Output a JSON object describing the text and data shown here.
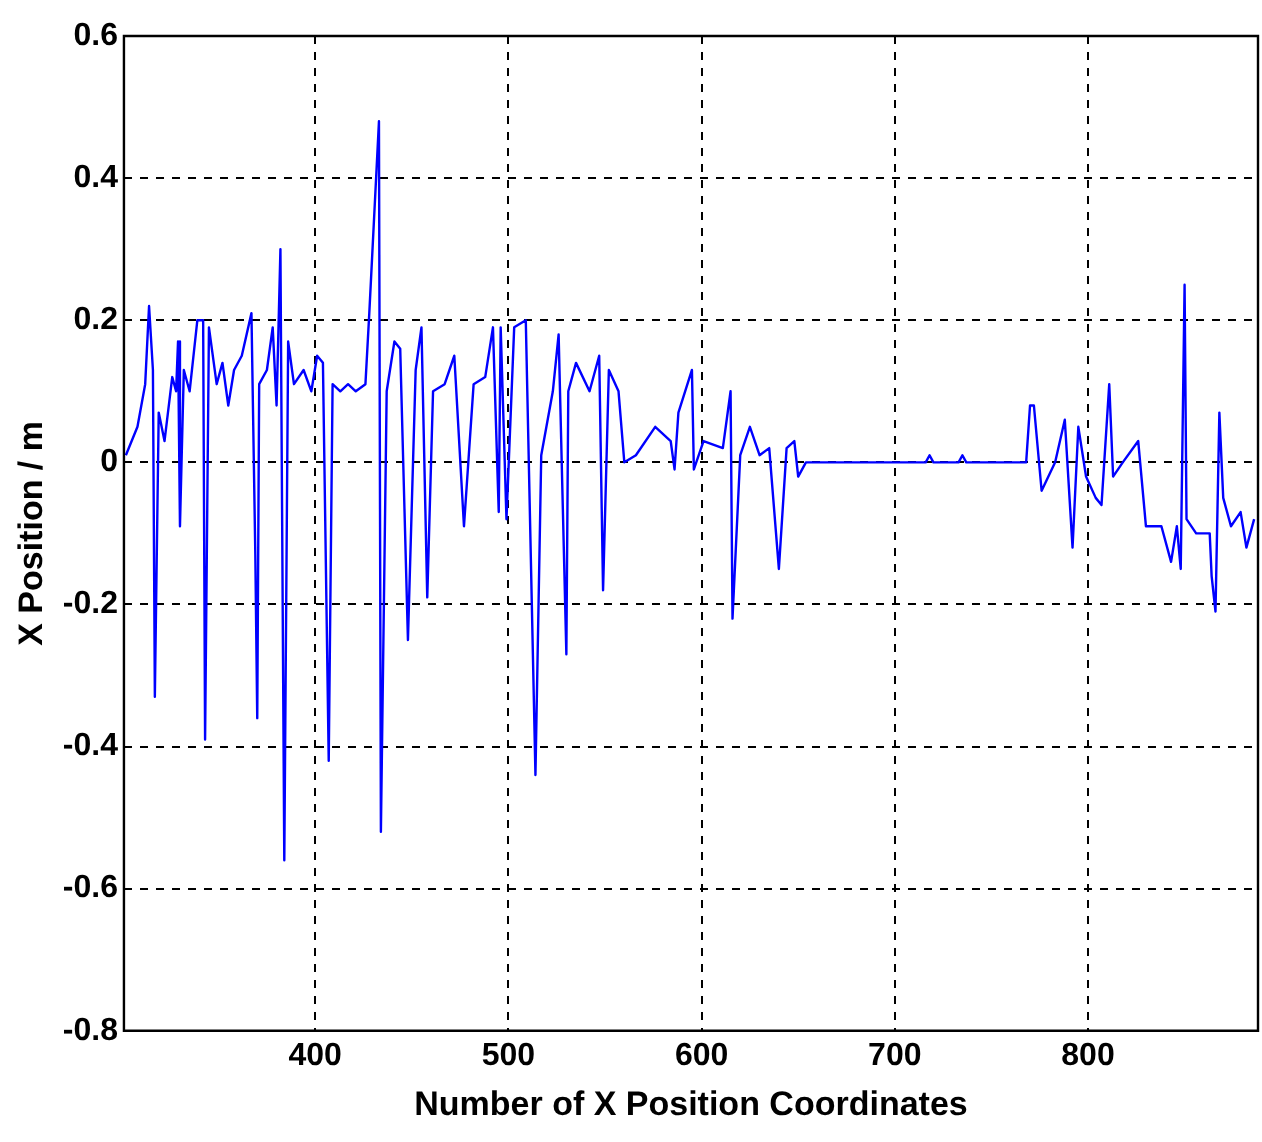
{
  "chart_data": {
    "type": "line",
    "xlabel": "Number of X Position Coordinates",
    "ylabel": "X Position / m",
    "xlim": [
      301,
      888
    ],
    "xticks": [
      400,
      500,
      600,
      700,
      800
    ],
    "ylim": [
      -0.8,
      0.6
    ],
    "yticks": [
      -0.8,
      -0.6,
      -0.4,
      -0.2,
      0,
      0.2,
      0.4,
      0.6
    ],
    "grid": true,
    "legend": false,
    "marker": "none",
    "line_style": "solid",
    "series": [
      {
        "color": "#0000ff",
        "x": [
          302,
          308,
          312,
          314,
          316,
          317,
          319,
          322,
          326,
          328,
          329,
          330,
          332,
          335,
          339,
          342,
          343,
          345,
          349,
          352,
          355,
          358,
          362,
          367,
          369,
          370,
          371,
          375,
          378,
          380,
          382,
          384,
          386,
          389,
          394,
          398,
          401,
          404,
          407,
          409,
          413,
          417,
          421,
          426,
          428,
          433,
          434,
          437,
          441,
          444,
          448,
          452,
          455,
          458,
          461,
          467,
          472,
          477,
          482,
          488,
          492,
          495,
          496,
          499,
          503,
          509,
          514,
          517,
          523,
          526,
          530,
          531,
          535,
          542,
          547,
          549,
          552,
          557,
          560,
          566,
          576,
          584,
          586,
          588,
          595,
          596,
          601,
          611,
          615,
          616,
          620,
          625,
          630,
          635,
          640,
          644,
          648,
          650,
          654,
          716,
          718,
          720,
          733,
          735,
          737,
          768,
          770,
          772,
          776,
          783,
          788,
          792,
          795,
          799,
          804,
          807,
          811,
          813,
          818,
          826,
          827,
          830,
          838,
          843,
          846,
          848,
          850,
          851,
          856,
          863,
          864,
          866,
          868,
          870,
          874,
          879,
          882,
          886
        ],
        "values": [
          0.01,
          0.05,
          0.11,
          0.22,
          0.13,
          -0.33,
          0.07,
          0.03,
          0.12,
          0.1,
          0.17,
          -0.09,
          0.13,
          0.1,
          0.2,
          0.2,
          -0.39,
          0.19,
          0.11,
          0.14,
          0.08,
          0.13,
          0.15,
          0.21,
          -0.13,
          -0.36,
          0.11,
          0.13,
          0.19,
          0.08,
          0.3,
          -0.56,
          0.17,
          0.11,
          0.13,
          0.1,
          0.15,
          0.14,
          -0.42,
          0.11,
          0.1,
          0.11,
          0.1,
          0.11,
          0.21,
          0.48,
          -0.52,
          0.1,
          0.17,
          0.16,
          -0.25,
          0.13,
          0.19,
          -0.19,
          0.1,
          0.11,
          0.15,
          -0.09,
          0.11,
          0.12,
          0.19,
          -0.07,
          0.19,
          -0.08,
          0.19,
          0.2,
          -0.44,
          0.01,
          0.1,
          0.18,
          -0.27,
          0.1,
          0.14,
          0.1,
          0.15,
          -0.18,
          0.13,
          0.1,
          0,
          0.01,
          0.05,
          0.03,
          -0.01,
          0.07,
          0.13,
          -0.01,
          0.03,
          0.02,
          0.1,
          -0.22,
          0.01,
          0.05,
          0.01,
          0.02,
          -0.15,
          0.02,
          0.03,
          -0.02,
          0,
          0,
          0.01,
          0,
          0,
          0.01,
          0,
          0,
          0.08,
          0.08,
          -0.04,
          0,
          0.06,
          -0.12,
          0.05,
          -0.02,
          -0.05,
          -0.06,
          0.11,
          -0.02,
          0,
          0.03,
          0,
          -0.09,
          -0.09,
          -0.14,
          -0.09,
          -0.15,
          0.25,
          -0.08,
          -0.1,
          -0.1,
          -0.16,
          -0.21,
          0.07,
          -0.05,
          -0.09,
          -0.07,
          -0.12,
          -0.08
        ]
      }
    ]
  }
}
